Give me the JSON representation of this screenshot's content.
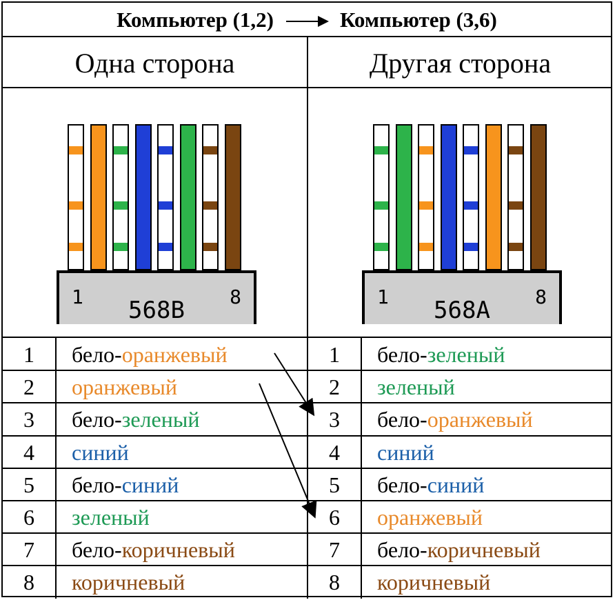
{
  "header": {
    "left": "Компьютер (1,2)",
    "right": "Компьютер (3,6)"
  },
  "sides": [
    {
      "title": "Одна сторона",
      "standard": "568B",
      "pin_first": "1",
      "pin_last": "8",
      "wires": [
        {
          "base": "#ffffff",
          "stripe": "#f7941d",
          "striped": true
        },
        {
          "base": "#f7941d",
          "striped": false
        },
        {
          "base": "#ffffff",
          "stripe": "#2db34a",
          "striped": true
        },
        {
          "base": "#1f3fd6",
          "striped": false
        },
        {
          "base": "#ffffff",
          "stripe": "#1f3fd6",
          "striped": true
        },
        {
          "base": "#2db34a",
          "striped": false
        },
        {
          "base": "#ffffff",
          "stripe": "#7a4511",
          "striped": true
        },
        {
          "base": "#7a4511",
          "striped": false
        }
      ],
      "rows": [
        {
          "num": "1",
          "prefix": "бело-",
          "color_word": "оранжевый",
          "color": "#e8892a"
        },
        {
          "num": "2",
          "prefix": "",
          "color_word": "оранжевый",
          "color": "#e8892a"
        },
        {
          "num": "3",
          "prefix": "бело-",
          "color_word": "зеленый",
          "color": "#1e9a55"
        },
        {
          "num": "4",
          "prefix": "",
          "color_word": "синий",
          "color": "#1b5fa8"
        },
        {
          "num": "5",
          "prefix": "бело-",
          "color_word": "синий",
          "color": "#1b5fa8"
        },
        {
          "num": "6",
          "prefix": "",
          "color_word": "зеленый",
          "color": "#1e9a55"
        },
        {
          "num": "7",
          "prefix": "бело-",
          "color_word": "коричневый",
          "color": "#8a4a14"
        },
        {
          "num": "8",
          "prefix": "",
          "color_word": "коричневый",
          "color": "#8a4a14"
        }
      ]
    },
    {
      "title": "Другая сторона",
      "standard": "568A",
      "pin_first": "1",
      "pin_last": "8",
      "wires": [
        {
          "base": "#ffffff",
          "stripe": "#2db34a",
          "striped": true
        },
        {
          "base": "#2db34a",
          "striped": false
        },
        {
          "base": "#ffffff",
          "stripe": "#f7941d",
          "striped": true
        },
        {
          "base": "#1f3fd6",
          "striped": false
        },
        {
          "base": "#ffffff",
          "stripe": "#1f3fd6",
          "striped": true
        },
        {
          "base": "#f7941d",
          "striped": false
        },
        {
          "base": "#ffffff",
          "stripe": "#7a4511",
          "striped": true
        },
        {
          "base": "#7a4511",
          "striped": false
        }
      ],
      "rows": [
        {
          "num": "1",
          "prefix": "бело-",
          "color_word": "зеленый",
          "color": "#1e9a55"
        },
        {
          "num": "2",
          "prefix": "",
          "color_word": "зеленый",
          "color": "#1e9a55"
        },
        {
          "num": "3",
          "prefix": "бело-",
          "color_word": "оранжевый",
          "color": "#e8892a"
        },
        {
          "num": "4",
          "prefix": "",
          "color_word": "синий",
          "color": "#1b5fa8"
        },
        {
          "num": "5",
          "prefix": "бело-",
          "color_word": "синий",
          "color": "#1b5fa8"
        },
        {
          "num": "6",
          "prefix": "",
          "color_word": "оранжевый",
          "color": "#e8892a"
        },
        {
          "num": "7",
          "prefix": "бело-",
          "color_word": "коричневый",
          "color": "#8a4a14"
        },
        {
          "num": "8",
          "prefix": "",
          "color_word": "коричневый",
          "color": "#8a4a14"
        }
      ]
    }
  ]
}
